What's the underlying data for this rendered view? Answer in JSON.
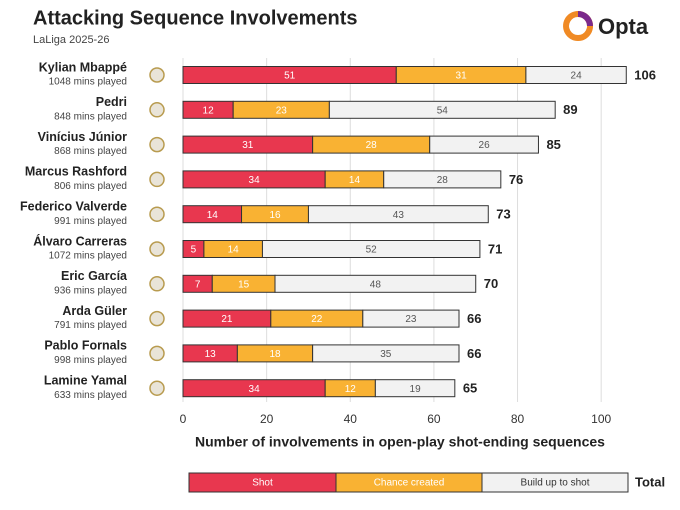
{
  "chart_data": {
    "type": "stacked-barh",
    "title": "Attacking Sequence Involvements",
    "subtitle": "LaLiga 2025-26",
    "brand": "Opta",
    "categories": [
      "Kylian Mbappé",
      "Pedri",
      "Vinícius Júnior",
      "Marcus Rashford",
      "Federico Valverde",
      "Álvaro Carreras",
      "Eric García",
      "Arda Güler",
      "Pablo Fornals",
      "Lamine Yamal"
    ],
    "minutes_labels": [
      "1048 mins played",
      "848 mins played",
      "868 mins played",
      "806 mins played",
      "991 mins played",
      "1072 mins played",
      "936 mins played",
      "791 mins played",
      "998 mins played",
      "633 mins played"
    ],
    "series": [
      {
        "name": "Shot",
        "color": "#e8374f",
        "values": [
          51,
          12,
          31,
          34,
          14,
          5,
          7,
          21,
          13,
          34
        ]
      },
      {
        "name": "Chance created",
        "color": "#f9b233",
        "values": [
          31,
          23,
          28,
          14,
          16,
          14,
          15,
          22,
          18,
          12
        ]
      },
      {
        "name": "Build up to shot",
        "color": "#f2f2f2",
        "values": [
          24,
          54,
          26,
          28,
          43,
          52,
          48,
          23,
          35,
          19
        ]
      }
    ],
    "totals": [
      106,
      89,
      85,
      76,
      73,
      71,
      70,
      66,
      66,
      65
    ],
    "total_label": "Total",
    "xlabel": "Number of involvements in open-play shot-ending sequences",
    "xlim": [
      0,
      110
    ],
    "xticks": [
      0,
      20,
      40,
      60,
      80,
      100
    ],
    "grid": true
  }
}
